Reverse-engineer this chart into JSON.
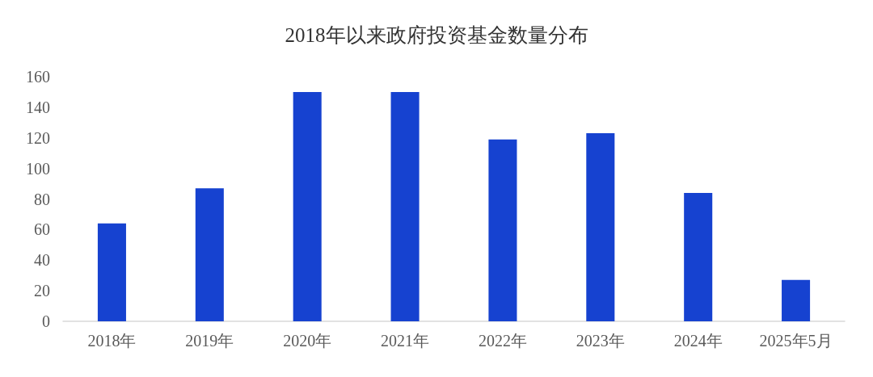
{
  "chart_data": {
    "type": "bar",
    "title": "2018年以来政府投资基金数量分布",
    "categories": [
      "2018年",
      "2019年",
      "2020年",
      "2021年",
      "2022年",
      "2023年",
      "2024年",
      "2025年5月"
    ],
    "values": [
      64,
      87,
      150,
      150,
      119,
      123,
      84,
      27
    ],
    "color": "#1642d0",
    "ylim": [
      0,
      160
    ],
    "yticks": [
      0,
      20,
      40,
      60,
      80,
      100,
      120,
      140,
      160
    ],
    "grid": false
  }
}
